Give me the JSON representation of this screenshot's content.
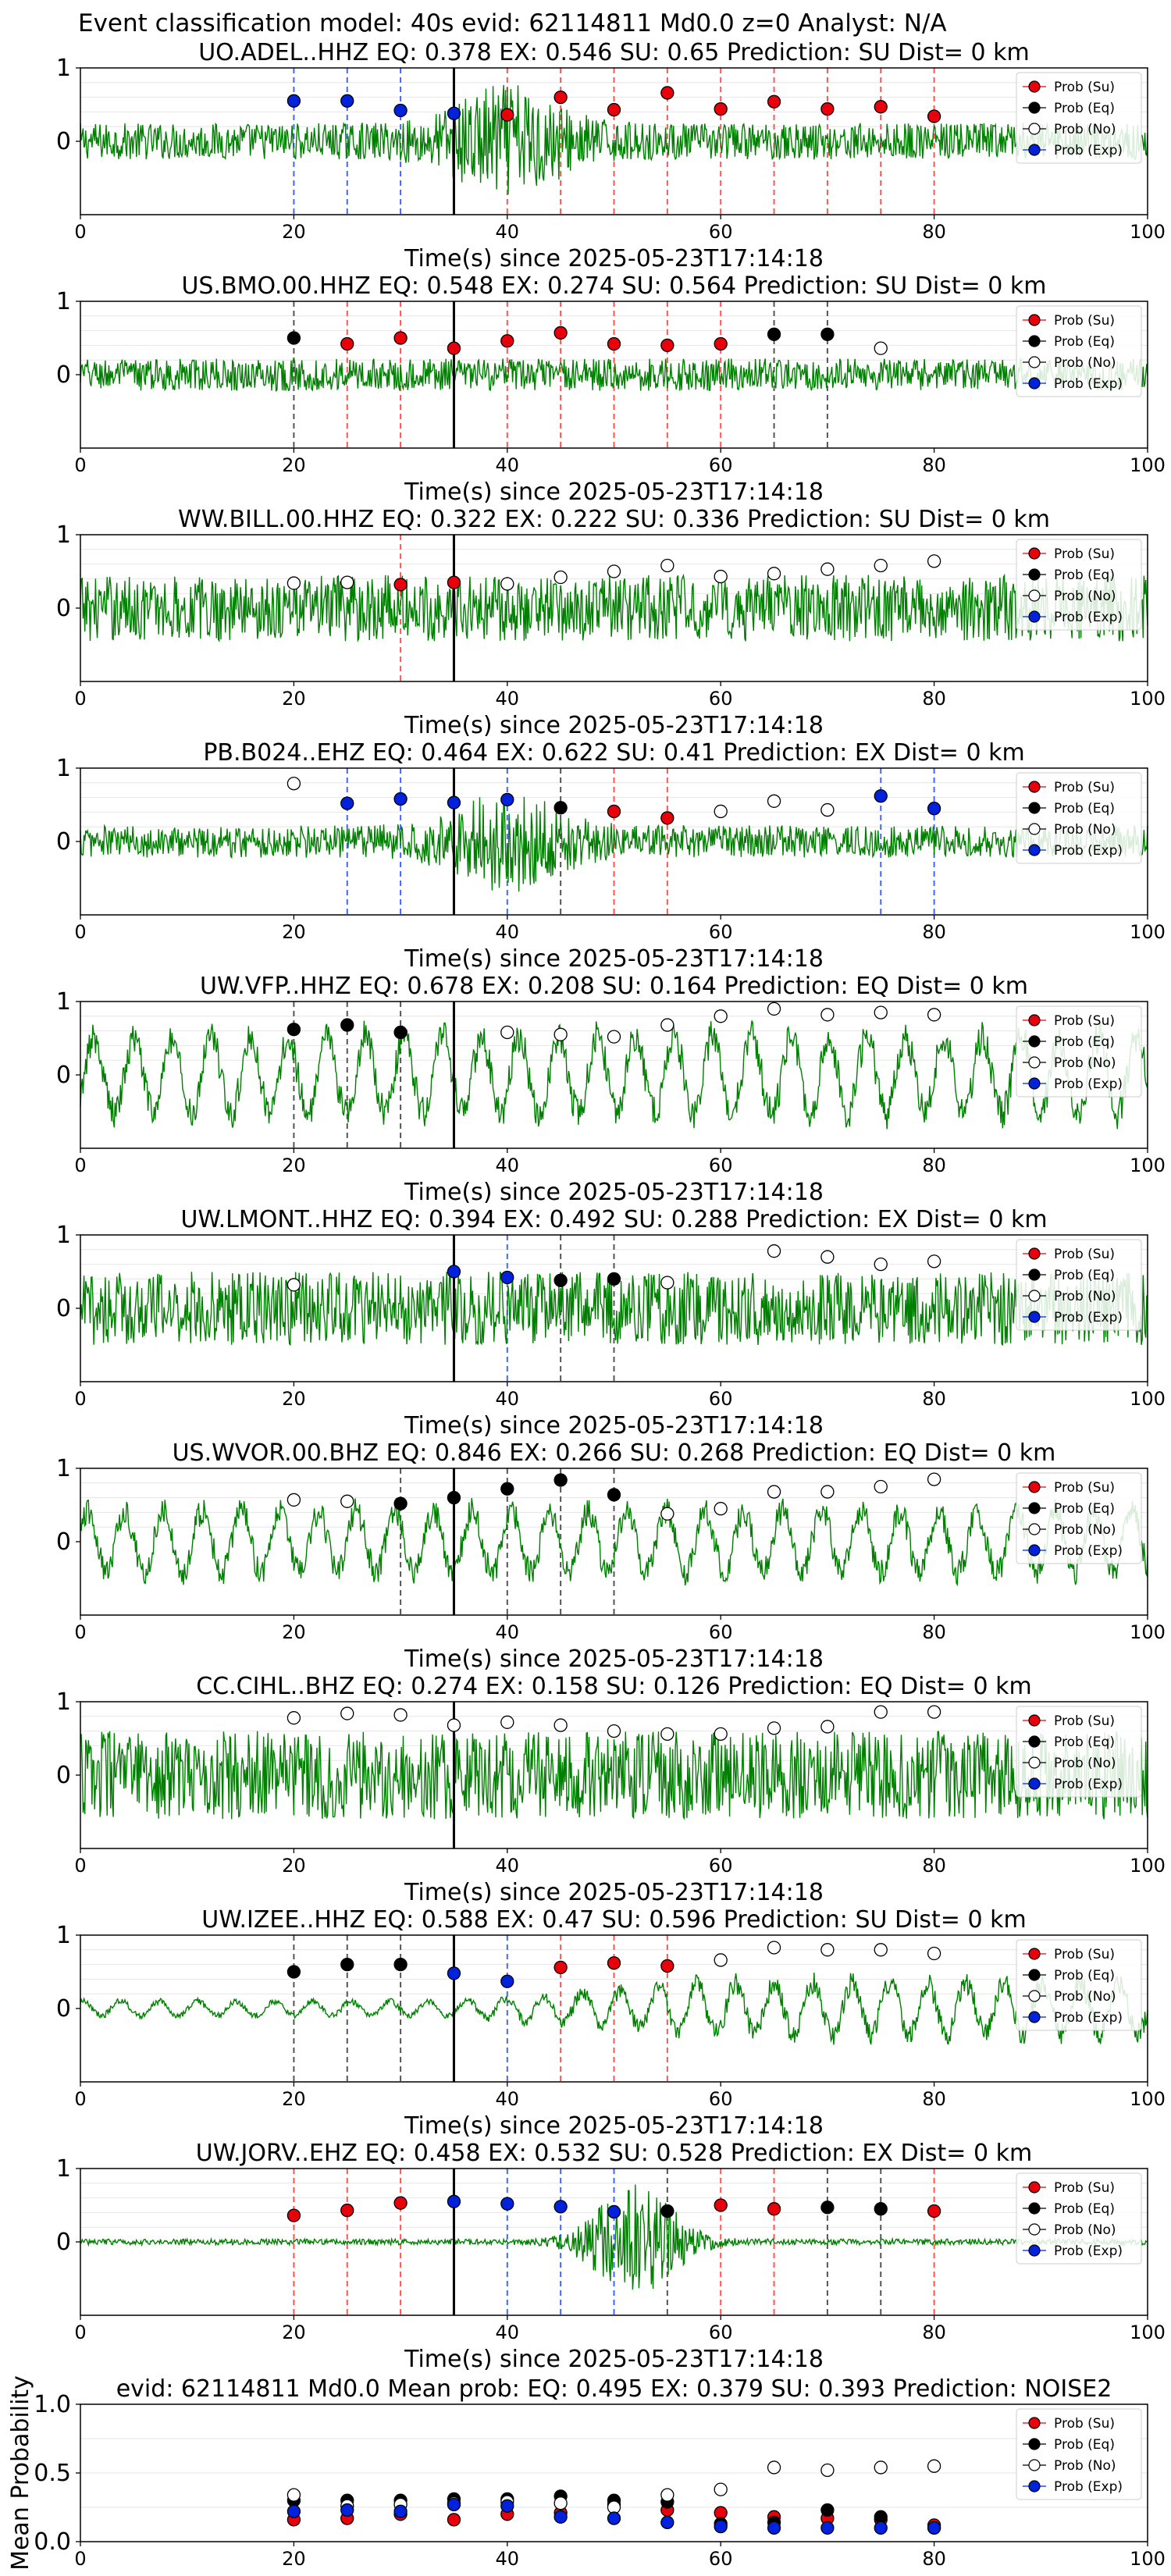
{
  "suptitle": "Event classification model: 40s evid: 62114811 Md0.0 z=0 Analyst: N/A",
  "legend_labels": [
    "Prob (Su)",
    "Prob (Eq)",
    "Prob (No)",
    "Prob (Exp)"
  ],
  "colors": {
    "Su": "#e8000b",
    "Eq": "#000000",
    "No": "#ffffff",
    "Exp": "#0022dd",
    "trace": "#008000",
    "line_Su": "#ff5555",
    "line_Eq": "#555555",
    "line_Exp": "#4466ff"
  },
  "chart_data": [
    {
      "type": "scatter",
      "station": "UO.ADEL..HHZ",
      "title": "UO.ADEL..HHZ   EQ: 0.378   EX: 0.546   SU: 0.65   Prediction: SU    Dist= 0 km",
      "xlabel": "Time(s) since 2025-05-23T17:14:18",
      "xlim": [
        0,
        100
      ],
      "ylim": [
        -1,
        1
      ],
      "xticks": [
        "0",
        "20",
        "40",
        "60",
        "80",
        "100"
      ],
      "yticks": [
        "1",
        "0"
      ],
      "event_line_x": 35,
      "trace_style": "burst",
      "trace_amp": 0.25,
      "points": [
        {
          "x": 20,
          "y": 0.55,
          "class": "Exp"
        },
        {
          "x": 25,
          "y": 0.55,
          "class": "Exp"
        },
        {
          "x": 30,
          "y": 0.42,
          "class": "Exp"
        },
        {
          "x": 35,
          "y": 0.38,
          "class": "Exp"
        },
        {
          "x": 40,
          "y": 0.36,
          "class": "Su"
        },
        {
          "x": 45,
          "y": 0.6,
          "class": "Su"
        },
        {
          "x": 50,
          "y": 0.43,
          "class": "Su"
        },
        {
          "x": 55,
          "y": 0.66,
          "class": "Su"
        },
        {
          "x": 60,
          "y": 0.44,
          "class": "Su"
        },
        {
          "x": 65,
          "y": 0.54,
          "class": "Su"
        },
        {
          "x": 70,
          "y": 0.44,
          "class": "Su"
        },
        {
          "x": 75,
          "y": 0.47,
          "class": "Su"
        },
        {
          "x": 80,
          "y": 0.34,
          "class": "Su"
        }
      ]
    },
    {
      "type": "scatter",
      "station": "US.BMO.00.HHZ",
      "title": "US.BMO.00.HHZ   EQ: 0.548  EX: 0.274  SU: 0.564   Prediction: SU    Dist= 0 km",
      "xlabel": "Time(s) since 2025-05-23T17:14:18",
      "xlim": [
        0,
        100
      ],
      "ylim": [
        -1,
        1
      ],
      "xticks": [
        "0",
        "20",
        "40",
        "60",
        "80",
        "100"
      ],
      "yticks": [
        "1",
        "0"
      ],
      "event_line_x": 35,
      "trace_style": "noise",
      "trace_amp": 0.22,
      "points": [
        {
          "x": 20,
          "y": 0.5,
          "class": "Eq"
        },
        {
          "x": 25,
          "y": 0.42,
          "class": "Su"
        },
        {
          "x": 30,
          "y": 0.5,
          "class": "Su"
        },
        {
          "x": 35,
          "y": 0.36,
          "class": "Su"
        },
        {
          "x": 40,
          "y": 0.46,
          "class": "Su"
        },
        {
          "x": 45,
          "y": 0.57,
          "class": "Su"
        },
        {
          "x": 50,
          "y": 0.42,
          "class": "Su"
        },
        {
          "x": 55,
          "y": 0.4,
          "class": "Su"
        },
        {
          "x": 60,
          "y": 0.42,
          "class": "Su"
        },
        {
          "x": 65,
          "y": 0.55,
          "class": "Eq"
        },
        {
          "x": 70,
          "y": 0.55,
          "class": "Eq"
        },
        {
          "x": 75,
          "y": 0.36,
          "class": "No"
        }
      ]
    },
    {
      "type": "scatter",
      "station": "WW.BILL.00.HHZ",
      "title": "WW.BILL.00.HHZ   EQ: 0.322  EX: 0.222  SU: 0.336   Prediction: SU    Dist= 0 km",
      "xlabel": "Time(s) since 2025-05-23T17:14:18",
      "xlim": [
        0,
        100
      ],
      "ylim": [
        -1,
        1
      ],
      "xticks": [
        "0",
        "20",
        "40",
        "60",
        "80",
        "100"
      ],
      "yticks": [
        "1",
        "0"
      ],
      "event_line_x": 35,
      "trace_style": "noise",
      "trace_amp": 0.45,
      "points": [
        {
          "x": 20,
          "y": 0.34,
          "class": "No"
        },
        {
          "x": 25,
          "y": 0.35,
          "class": "No"
        },
        {
          "x": 30,
          "y": 0.32,
          "class": "Su"
        },
        {
          "x": 35,
          "y": 0.35,
          "class": "Su"
        },
        {
          "x": 40,
          "y": 0.33,
          "class": "No"
        },
        {
          "x": 45,
          "y": 0.42,
          "class": "No"
        },
        {
          "x": 50,
          "y": 0.5,
          "class": "No"
        },
        {
          "x": 55,
          "y": 0.58,
          "class": "No"
        },
        {
          "x": 60,
          "y": 0.43,
          "class": "No"
        },
        {
          "x": 65,
          "y": 0.47,
          "class": "No"
        },
        {
          "x": 70,
          "y": 0.53,
          "class": "No"
        },
        {
          "x": 75,
          "y": 0.58,
          "class": "No"
        },
        {
          "x": 80,
          "y": 0.64,
          "class": "No"
        }
      ]
    },
    {
      "type": "scatter",
      "station": "PB.B024..EHZ",
      "title": "PB.B024..EHZ   EQ: 0.464  EX: 0.622  SU: 0.41   Prediction: EX    Dist= 0 km",
      "xlabel": "Time(s) since 2025-05-23T17:14:18",
      "xlim": [
        0,
        100
      ],
      "ylim": [
        -1,
        1
      ],
      "xticks": [
        "0",
        "20",
        "40",
        "60",
        "80",
        "100"
      ],
      "yticks": [
        "1",
        "0"
      ],
      "event_line_x": 35,
      "trace_style": "burst",
      "trace_amp": 0.22,
      "points": [
        {
          "x": 20,
          "y": 0.79,
          "class": "No"
        },
        {
          "x": 25,
          "y": 0.52,
          "class": "Exp"
        },
        {
          "x": 30,
          "y": 0.58,
          "class": "Exp"
        },
        {
          "x": 35,
          "y": 0.53,
          "class": "Exp"
        },
        {
          "x": 40,
          "y": 0.57,
          "class": "Exp"
        },
        {
          "x": 45,
          "y": 0.46,
          "class": "Eq"
        },
        {
          "x": 50,
          "y": 0.41,
          "class": "Su"
        },
        {
          "x": 55,
          "y": 0.32,
          "class": "Su"
        },
        {
          "x": 60,
          "y": 0.41,
          "class": "No"
        },
        {
          "x": 65,
          "y": 0.55,
          "class": "No"
        },
        {
          "x": 70,
          "y": 0.43,
          "class": "No"
        },
        {
          "x": 75,
          "y": 0.62,
          "class": "Exp"
        },
        {
          "x": 80,
          "y": 0.45,
          "class": "Exp"
        }
      ]
    },
    {
      "type": "scatter",
      "station": "UW.VFP..HHZ",
      "title": "UW.VFP..HHZ   EQ: 0.678  EX: 0.208  SU: 0.164   Prediction: EQ    Dist= 0 km",
      "xlabel": "Time(s) since 2025-05-23T17:14:18",
      "xlim": [
        0,
        100
      ],
      "ylim": [
        -1,
        1
      ],
      "xticks": [
        "0",
        "20",
        "40",
        "60",
        "80",
        "100"
      ],
      "yticks": [
        "1",
        "0"
      ],
      "event_line_x": 35,
      "trace_style": "wave",
      "trace_amp": 0.75,
      "points": [
        {
          "x": 20,
          "y": 0.62,
          "class": "Eq"
        },
        {
          "x": 25,
          "y": 0.68,
          "class": "Eq"
        },
        {
          "x": 30,
          "y": 0.58,
          "class": "Eq"
        },
        {
          "x": 40,
          "y": 0.58,
          "class": "No"
        },
        {
          "x": 45,
          "y": 0.55,
          "class": "No"
        },
        {
          "x": 50,
          "y": 0.52,
          "class": "No"
        },
        {
          "x": 55,
          "y": 0.68,
          "class": "No"
        },
        {
          "x": 60,
          "y": 0.8,
          "class": "No"
        },
        {
          "x": 65,
          "y": 0.9,
          "class": "No"
        },
        {
          "x": 70,
          "y": 0.82,
          "class": "No"
        },
        {
          "x": 75,
          "y": 0.85,
          "class": "No"
        },
        {
          "x": 80,
          "y": 0.82,
          "class": "No"
        }
      ]
    },
    {
      "type": "scatter",
      "station": "UW.LMONT..HHZ",
      "title": "UW.LMONT..HHZ   EQ: 0.394  EX: 0.492  SU: 0.288   Prediction: EX    Dist= 0 km",
      "xlabel": "Time(s) since 2025-05-23T17:14:18",
      "xlim": [
        0,
        100
      ],
      "ylim": [
        -1,
        1
      ],
      "xticks": [
        "0",
        "20",
        "40",
        "60",
        "80",
        "100"
      ],
      "yticks": [
        "1",
        "0"
      ],
      "event_line_x": 35,
      "trace_style": "noise",
      "trace_amp": 0.5,
      "points": [
        {
          "x": 20,
          "y": 0.32,
          "class": "No"
        },
        {
          "x": 35,
          "y": 0.5,
          "class": "Exp"
        },
        {
          "x": 40,
          "y": 0.42,
          "class": "Exp"
        },
        {
          "x": 45,
          "y": 0.38,
          "class": "Eq"
        },
        {
          "x": 50,
          "y": 0.4,
          "class": "Eq"
        },
        {
          "x": 55,
          "y": 0.35,
          "class": "No"
        },
        {
          "x": 65,
          "y": 0.78,
          "class": "No"
        },
        {
          "x": 70,
          "y": 0.7,
          "class": "No"
        },
        {
          "x": 75,
          "y": 0.6,
          "class": "No"
        },
        {
          "x": 80,
          "y": 0.64,
          "class": "No"
        }
      ]
    },
    {
      "type": "scatter",
      "station": "US.WVOR.00.BHZ",
      "title": "US.WVOR.00.BHZ   EQ: 0.846  EX: 0.266  SU: 0.268   Prediction: EQ    Dist= 0 km",
      "xlabel": "Time(s) since 2025-05-23T17:14:18",
      "xlim": [
        0,
        100
      ],
      "ylim": [
        -1,
        1
      ],
      "xticks": [
        "0",
        "20",
        "40",
        "60",
        "80",
        "100"
      ],
      "yticks": [
        "1",
        "0"
      ],
      "event_line_x": 35,
      "trace_style": "wave",
      "trace_amp": 0.6,
      "points": [
        {
          "x": 20,
          "y": 0.57,
          "class": "No"
        },
        {
          "x": 25,
          "y": 0.55,
          "class": "No"
        },
        {
          "x": 30,
          "y": 0.52,
          "class": "Eq"
        },
        {
          "x": 35,
          "y": 0.6,
          "class": "Eq"
        },
        {
          "x": 40,
          "y": 0.72,
          "class": "Eq"
        },
        {
          "x": 45,
          "y": 0.84,
          "class": "Eq"
        },
        {
          "x": 50,
          "y": 0.64,
          "class": "Eq"
        },
        {
          "x": 55,
          "y": 0.38,
          "class": "No"
        },
        {
          "x": 60,
          "y": 0.45,
          "class": "No"
        },
        {
          "x": 65,
          "y": 0.68,
          "class": "No"
        },
        {
          "x": 70,
          "y": 0.68,
          "class": "No"
        },
        {
          "x": 75,
          "y": 0.75,
          "class": "No"
        },
        {
          "x": 80,
          "y": 0.85,
          "class": "No"
        }
      ]
    },
    {
      "type": "scatter",
      "station": "CC.CIHL..BHZ",
      "title": "CC.CIHL..BHZ   EQ: 0.274  EX: 0.158  SU: 0.126   Prediction: EQ    Dist= 0 km",
      "xlabel": "Time(s) since 2025-05-23T17:14:18",
      "xlim": [
        0,
        100
      ],
      "ylim": [
        -1,
        1
      ],
      "xticks": [
        "0",
        "20",
        "40",
        "60",
        "80",
        "100"
      ],
      "yticks": [
        "1",
        "0"
      ],
      "event_line_x": 35,
      "trace_style": "noise",
      "trace_amp": 0.6,
      "points": [
        {
          "x": 20,
          "y": 0.78,
          "class": "No"
        },
        {
          "x": 25,
          "y": 0.84,
          "class": "No"
        },
        {
          "x": 30,
          "y": 0.82,
          "class": "No"
        },
        {
          "x": 35,
          "y": 0.68,
          "class": "No"
        },
        {
          "x": 40,
          "y": 0.72,
          "class": "No"
        },
        {
          "x": 45,
          "y": 0.68,
          "class": "No"
        },
        {
          "x": 50,
          "y": 0.6,
          "class": "No"
        },
        {
          "x": 55,
          "y": 0.56,
          "class": "No"
        },
        {
          "x": 60,
          "y": 0.56,
          "class": "No"
        },
        {
          "x": 65,
          "y": 0.64,
          "class": "No"
        },
        {
          "x": 70,
          "y": 0.66,
          "class": "No"
        },
        {
          "x": 75,
          "y": 0.86,
          "class": "No"
        },
        {
          "x": 80,
          "y": 0.86,
          "class": "No"
        }
      ]
    },
    {
      "type": "scatter",
      "station": "UW.IZEE..HHZ",
      "title": "UW.IZEE..HHZ   EQ: 0.588  EX: 0.47  SU: 0.596   Prediction: SU    Dist= 0 km",
      "xlabel": "Time(s) since 2025-05-23T17:14:18",
      "xlim": [
        0,
        100
      ],
      "ylim": [
        -1,
        1
      ],
      "xticks": [
        "0",
        "20",
        "40",
        "60",
        "80",
        "100"
      ],
      "yticks": [
        "1",
        "0"
      ],
      "event_line_x": 35,
      "trace_style": "grow",
      "trace_amp": 0.4,
      "points": [
        {
          "x": 20,
          "y": 0.5,
          "class": "Eq"
        },
        {
          "x": 25,
          "y": 0.6,
          "class": "Eq"
        },
        {
          "x": 30,
          "y": 0.6,
          "class": "Eq"
        },
        {
          "x": 35,
          "y": 0.48,
          "class": "Exp"
        },
        {
          "x": 40,
          "y": 0.37,
          "class": "Exp"
        },
        {
          "x": 45,
          "y": 0.56,
          "class": "Su"
        },
        {
          "x": 50,
          "y": 0.62,
          "class": "Su"
        },
        {
          "x": 55,
          "y": 0.58,
          "class": "Su"
        },
        {
          "x": 60,
          "y": 0.66,
          "class": "No"
        },
        {
          "x": 65,
          "y": 0.83,
          "class": "No"
        },
        {
          "x": 70,
          "y": 0.8,
          "class": "No"
        },
        {
          "x": 75,
          "y": 0.8,
          "class": "No"
        },
        {
          "x": 80,
          "y": 0.75,
          "class": "No"
        }
      ]
    },
    {
      "type": "scatter",
      "station": "UW.JORV..EHZ",
      "title": "UW.JORV..EHZ   EQ: 0.458  EX: 0.532  SU: 0.528   Prediction: EX    Dist= 0 km",
      "xlabel": "Time(s) since 2025-05-23T17:14:18",
      "xlim": [
        0,
        100
      ],
      "ylim": [
        -1,
        1
      ],
      "xticks": [
        "0",
        "20",
        "40",
        "60",
        "80",
        "100"
      ],
      "yticks": [
        "1",
        "0"
      ],
      "event_line_x": 35,
      "trace_style": "late_burst",
      "trace_amp": 0.04,
      "points": [
        {
          "x": 20,
          "y": 0.36,
          "class": "Su"
        },
        {
          "x": 25,
          "y": 0.43,
          "class": "Su"
        },
        {
          "x": 30,
          "y": 0.53,
          "class": "Su"
        },
        {
          "x": 35,
          "y": 0.55,
          "class": "Exp"
        },
        {
          "x": 40,
          "y": 0.52,
          "class": "Exp"
        },
        {
          "x": 45,
          "y": 0.48,
          "class": "Exp"
        },
        {
          "x": 50,
          "y": 0.41,
          "class": "Exp"
        },
        {
          "x": 55,
          "y": 0.42,
          "class": "Eq"
        },
        {
          "x": 60,
          "y": 0.5,
          "class": "Su"
        },
        {
          "x": 65,
          "y": 0.45,
          "class": "Su"
        },
        {
          "x": 70,
          "y": 0.47,
          "class": "Eq"
        },
        {
          "x": 75,
          "y": 0.45,
          "class": "Eq"
        },
        {
          "x": 80,
          "y": 0.42,
          "class": "Su"
        }
      ]
    },
    {
      "type": "scatter",
      "station": "mean",
      "title": "evid: 62114811  Md0.0   Mean prob:   EQ: 0.495  EX: 0.379  SU: 0.393   Prediction: NOISE2",
      "xlabel": "",
      "ylabel": "Mean Probability",
      "xlim": [
        0,
        100
      ],
      "ylim": [
        0,
        1
      ],
      "xticks": [
        "0",
        "20",
        "40",
        "60",
        "80",
        "100"
      ],
      "yticks": [
        "1.0",
        "0.5",
        "0.0"
      ],
      "series": [
        {
          "name": "Prob (Su)",
          "class": "Su",
          "x": [
            20,
            25,
            30,
            35,
            40,
            45,
            50,
            55,
            60,
            65,
            70,
            75,
            80
          ],
          "y": [
            0.16,
            0.17,
            0.2,
            0.16,
            0.2,
            0.21,
            0.27,
            0.23,
            0.21,
            0.18,
            0.17,
            0.16,
            0.12
          ]
        },
        {
          "name": "Prob (Eq)",
          "class": "Eq",
          "x": [
            20,
            25,
            30,
            35,
            40,
            45,
            50,
            55,
            60,
            65,
            70,
            75,
            80
          ],
          "y": [
            0.3,
            0.3,
            0.3,
            0.31,
            0.31,
            0.33,
            0.3,
            0.29,
            0.13,
            0.14,
            0.23,
            0.18,
            0.1
          ]
        },
        {
          "name": "Prob (No)",
          "class": "No",
          "x": [
            20,
            25,
            30,
            35,
            40,
            45,
            50,
            55,
            60,
            65,
            70,
            75,
            80
          ],
          "y": [
            0.34,
            0.26,
            0.27,
            0.28,
            0.29,
            0.28,
            0.25,
            0.34,
            0.38,
            0.54,
            0.52,
            0.54,
            0.55
          ]
        },
        {
          "name": "Prob (Exp)",
          "class": "Exp",
          "x": [
            20,
            25,
            30,
            35,
            40,
            45,
            50,
            55,
            60,
            65,
            70,
            75,
            80
          ],
          "y": [
            0.22,
            0.23,
            0.22,
            0.27,
            0.26,
            0.18,
            0.17,
            0.14,
            0.11,
            0.1,
            0.1,
            0.1,
            0.1
          ]
        }
      ]
    }
  ]
}
